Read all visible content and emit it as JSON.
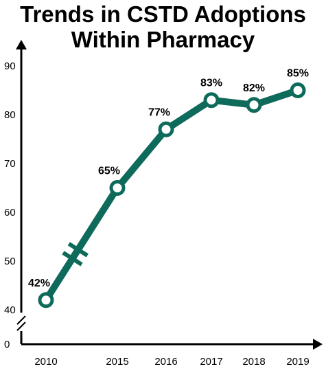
{
  "title": {
    "line1": "Trends in CSTD Adoptions",
    "line2": "Within Pharmacy"
  },
  "colors": {
    "line": "#0e6a5b",
    "axis": "#000000",
    "marker_fill": "#ffffff"
  },
  "chart_data": {
    "type": "line",
    "title": "Trends in CSTD Adoptions Within Pharmacy",
    "xlabel": "",
    "ylabel": "",
    "categories": [
      "2010",
      "2015",
      "2016",
      "2017",
      "2018",
      "2019"
    ],
    "series": [
      {
        "values": [
          42,
          65,
          77,
          83,
          82,
          85
        ]
      }
    ],
    "data_labels": [
      "42%",
      "65%",
      "77%",
      "83%",
      "82%",
      "85%"
    ],
    "y_ticks": [
      "0",
      "40",
      "50",
      "60",
      "70",
      "80",
      "90"
    ],
    "ylim": [
      40,
      90
    ],
    "y_axis_break": "between 0 and 40",
    "x_axis_break": "between 2010 and 2015",
    "grid": false
  }
}
